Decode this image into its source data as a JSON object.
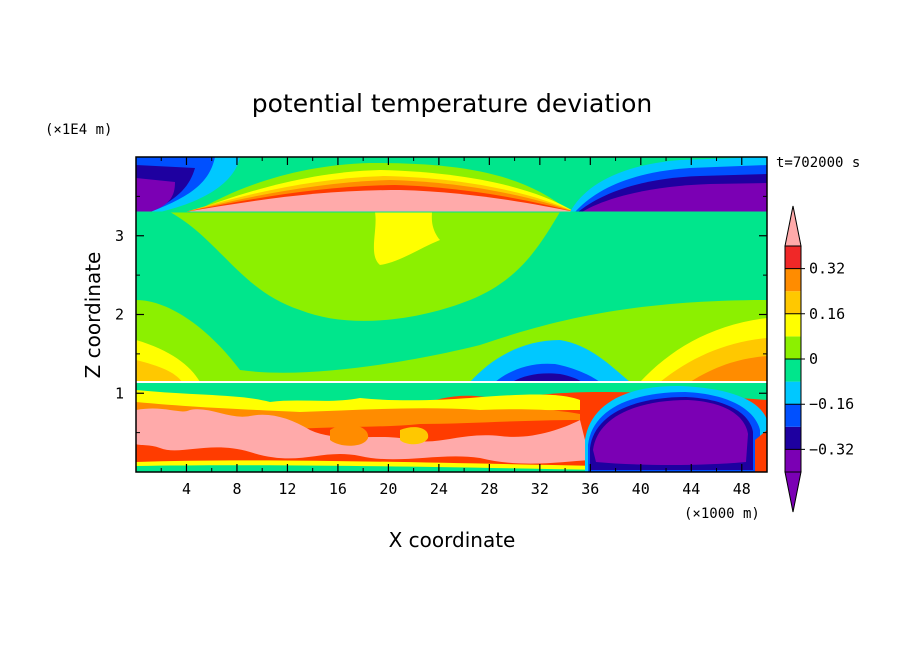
{
  "chart_data": {
    "type": "heatmap",
    "title": "potential temperature deviation",
    "time_label": "t=702000 s",
    "xlabel": "X coordinate",
    "ylabel": "Z coordinate",
    "x_unit": "(×1000 m)",
    "y_unit": "(×1E4 m)",
    "xlim": [
      0,
      50
    ],
    "ylim": [
      0,
      4
    ],
    "x_ticks": [
      4,
      8,
      12,
      16,
      20,
      24,
      28,
      32,
      36,
      40,
      44,
      48
    ],
    "x_tick_labels": [
      "4",
      "8",
      "12",
      "16",
      "20",
      "24",
      "28",
      "32",
      "36",
      "40",
      "44",
      "48"
    ],
    "y_ticks": [
      1,
      2,
      3
    ],
    "y_tick_labels": [
      "1",
      "2",
      "3"
    ],
    "colorbar": {
      "levels": [
        -0.4,
        -0.32,
        -0.24,
        -0.16,
        -0.08,
        0,
        0.08,
        0.16,
        0.24,
        0.32,
        0.4
      ],
      "labeled_levels": [
        0.32,
        0.16,
        0,
        -0.16,
        -0.32
      ],
      "labels": [
        "0.32",
        "0.16",
        "0",
        "−0.16",
        "−0.32"
      ],
      "colors": [
        "#7b00b4",
        "#1e00a0",
        "#0050ff",
        "#00c8ff",
        "#00e68c",
        "#8cf000",
        "#ffff00",
        "#ffc800",
        "#ff8c00",
        "#ff3c00",
        "#f02828"
      ],
      "over_color": "#ffaaaa",
      "under_color": "#7b00b4"
    },
    "regions": {
      "background": 0,
      "top_layer_z": [
        3.3,
        4.0
      ],
      "middle_layer_z": [
        1.15,
        3.3
      ],
      "bottom_layer_z": [
        0.0,
        1.15
      ],
      "top_left_cold": -0.4,
      "top_center_warm": 0.45,
      "top_right_cold": -0.4,
      "bottom_left_warm": 0.45,
      "bottom_right_cold": -0.4
    }
  }
}
